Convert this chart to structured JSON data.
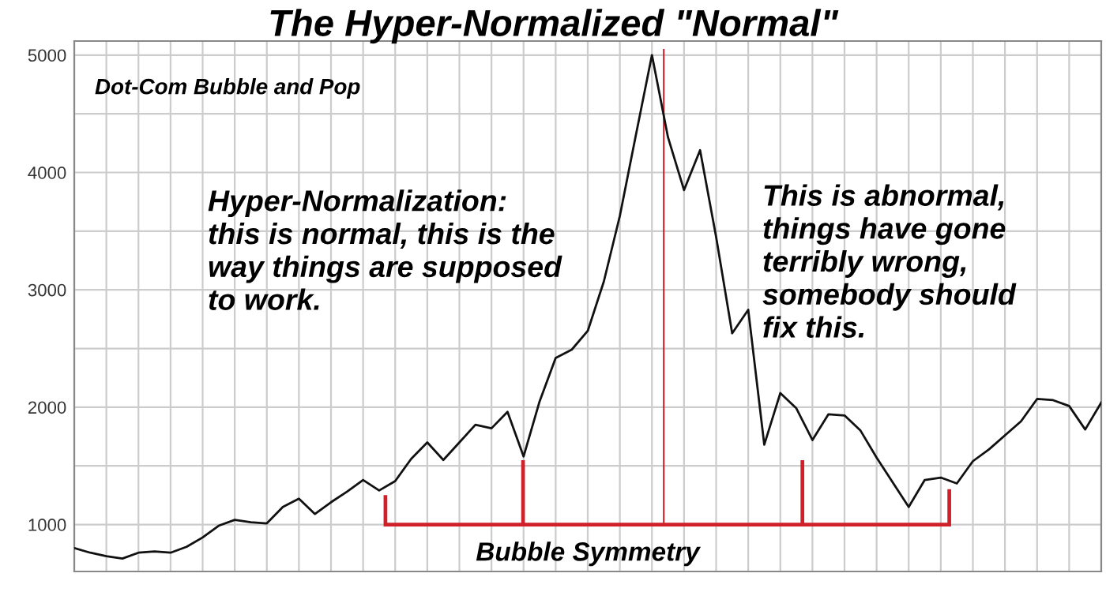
{
  "chart_data": {
    "type": "line",
    "title": "The Hyper-Normalized \"Normal\"",
    "annotations": [
      "Dot-Com Bubble and Pop",
      "Hyper-Normalization:\nthis is normal, this is the\nway things are supposed\nto work.",
      "This is abnormal,\nthings have gone\nterribly wrong,\nsomebody should\nfix this.",
      "Bubble Symmetry"
    ],
    "categories": [
      null,
      null,
      null,
      null,
      null,
      null,
      null,
      null,
      null,
      null,
      null,
      null,
      null,
      null,
      null,
      null,
      null,
      null,
      null,
      null,
      null,
      null,
      null,
      null,
      null,
      null,
      null,
      null,
      null,
      null,
      null,
      null,
      null,
      null,
      null,
      null,
      null,
      null,
      null,
      null,
      null,
      null,
      null,
      null,
      null,
      null,
      null,
      null,
      null,
      null,
      null,
      null,
      null,
      null,
      null,
      null,
      null,
      null,
      null,
      null,
      null,
      null,
      null,
      null,
      null
    ],
    "series": [
      {
        "color": "#111111",
        "values": [
          800,
          760,
          730,
          710,
          760,
          770,
          760,
          810,
          890,
          990,
          1040,
          1020,
          1010,
          1150,
          1220,
          1090,
          1190,
          1280,
          1380,
          1290,
          1370,
          1560,
          1700,
          1550,
          1700,
          1850,
          1820,
          1960,
          1580,
          2050,
          2420,
          2490,
          2650,
          3070,
          3630,
          4320,
          5000,
          4300,
          3850,
          4190,
          3450,
          2630,
          2830,
          1680,
          2120,
          1990,
          1720,
          1940,
          1930,
          1800,
          1570,
          1360,
          1150,
          1380,
          1400,
          1350,
          1540,
          1640,
          1760,
          1880,
          2070,
          2060,
          2010,
          1810,
          2040
        ]
      }
    ],
    "ylim": [
      600,
      5120
    ],
    "yticks": [
      1000,
      {
        "value": 1500,
        "label": null
      },
      2000,
      {
        "value": 2500,
        "label": null
      },
      3000,
      {
        "value": 3500,
        "label": null
      },
      4000,
      {
        "value": 4500,
        "label": null
      },
      5000
    ],
    "grid": true,
    "marker": "none",
    "line_style": "solid"
  }
}
